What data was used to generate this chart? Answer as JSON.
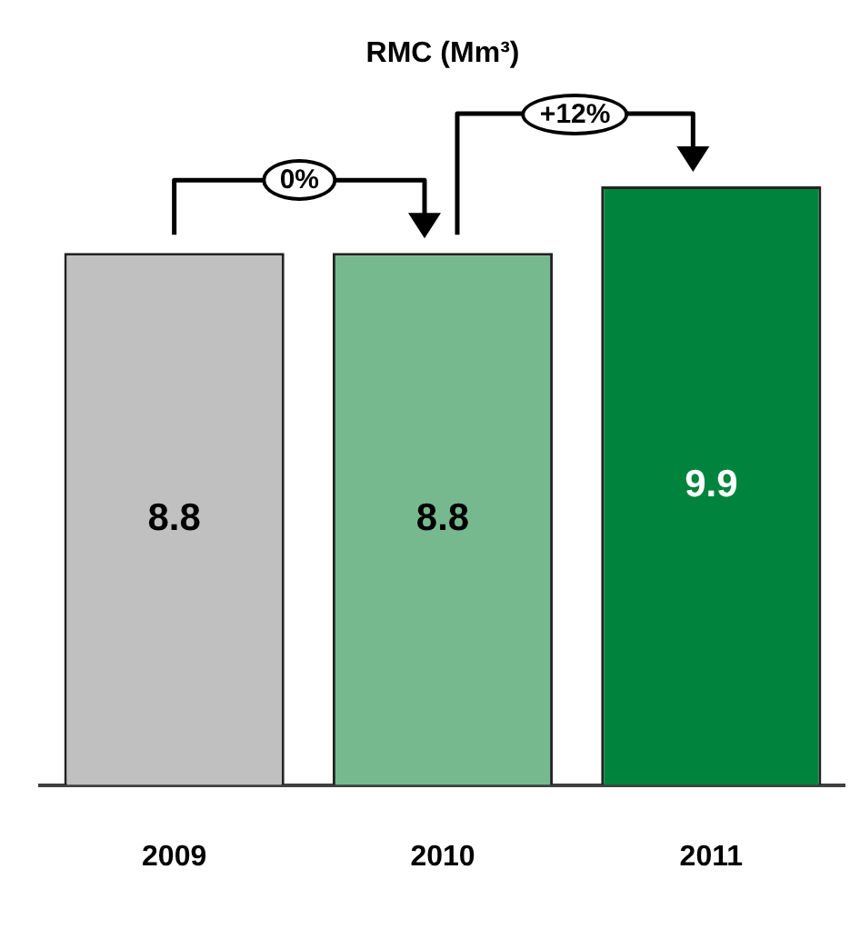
{
  "chart_data": {
    "type": "bar",
    "title": "RMC (Mm³)",
    "categories": [
      "2009",
      "2010",
      "2011"
    ],
    "values": [
      8.8,
      8.8,
      9.9
    ],
    "colors": [
      "#c0c0c0",
      "#77b98f",
      "#00843d"
    ],
    "data_labels": true,
    "annotations": [
      "0%",
      "+12%"
    ]
  }
}
